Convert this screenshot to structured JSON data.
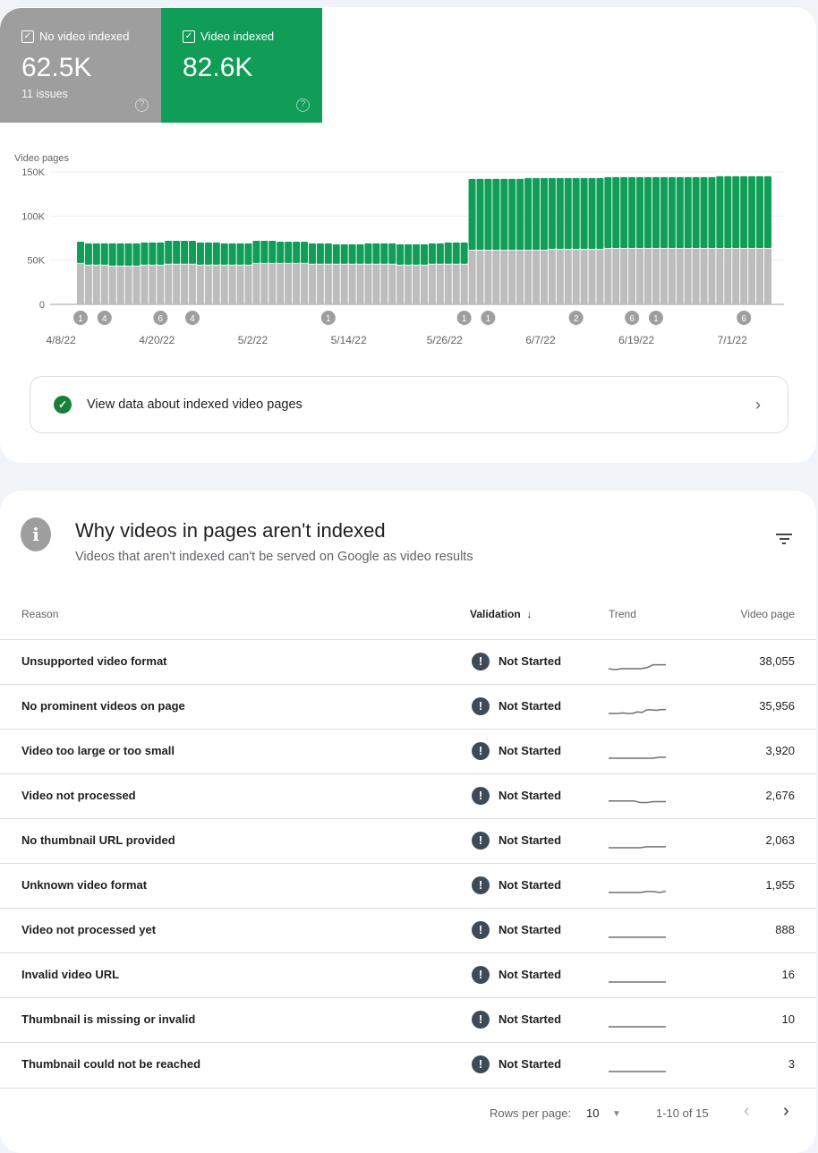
{
  "summary": {
    "no_video": {
      "label": "No video indexed",
      "value": "62.5K",
      "sub": "11 issues",
      "color": "#9e9e9e"
    },
    "video": {
      "label": "Video indexed",
      "value": "82.6K",
      "color": "#0f9d58"
    }
  },
  "chart_data": {
    "type": "bar",
    "stacked": true,
    "ylabel": "Video pages",
    "ylim": [
      0,
      150000
    ],
    "yticks": [
      "0",
      "50K",
      "100K",
      "150K"
    ],
    "ytick_values": [
      0,
      50000,
      100000,
      150000
    ],
    "grid": true,
    "xticks": [
      "4/8/22",
      "4/20/22",
      "5/2/22",
      "5/14/22",
      "5/26/22",
      "6/7/22",
      "6/19/22",
      "7/1/22"
    ],
    "dates": [
      "4/10",
      "4/11",
      "4/12",
      "4/13",
      "4/14",
      "4/15",
      "4/16",
      "4/17",
      "4/18",
      "4/19",
      "4/20",
      "4/21",
      "4/22",
      "4/23",
      "4/24",
      "4/25",
      "4/26",
      "4/27",
      "4/28",
      "4/29",
      "4/30",
      "5/1",
      "5/2",
      "5/3",
      "5/4",
      "5/5",
      "5/6",
      "5/7",
      "5/8",
      "5/9",
      "5/10",
      "5/11",
      "5/12",
      "5/13",
      "5/14",
      "5/15",
      "5/16",
      "5/17",
      "5/18",
      "5/19",
      "5/20",
      "5/21",
      "5/22",
      "5/23",
      "5/24",
      "5/25",
      "5/26",
      "5/27",
      "5/28",
      "5/29",
      "5/30",
      "5/31",
      "6/1",
      "6/2",
      "6/3",
      "6/4",
      "6/5",
      "6/6",
      "6/7",
      "6/8",
      "6/9",
      "6/10",
      "6/11",
      "6/12",
      "6/13",
      "6/14",
      "6/15",
      "6/16",
      "6/17",
      "6/18",
      "6/19",
      "6/20",
      "6/21",
      "6/22",
      "6/23",
      "6/24",
      "6/25",
      "6/26",
      "6/27",
      "6/28",
      "6/29",
      "6/30",
      "7/1",
      "7/2",
      "7/3",
      "7/4",
      "7/5"
    ],
    "series": [
      {
        "name": "No video indexed",
        "color": "#bdbdbd",
        "values_k": [
          46,
          44,
          44,
          44,
          43,
          43,
          43,
          43,
          44,
          44,
          44,
          45,
          45,
          45,
          45,
          44,
          44,
          44,
          44,
          44,
          44,
          44,
          46,
          46,
          46,
          46,
          46,
          46,
          46,
          45,
          45,
          45,
          45,
          45,
          45,
          45,
          45,
          45,
          45,
          45,
          44,
          44,
          44,
          44,
          45,
          45,
          45,
          45,
          45,
          61,
          61,
          61,
          61,
          61,
          61,
          61,
          61,
          61,
          61,
          62,
          62,
          62,
          62,
          62,
          62,
          62,
          63,
          63,
          63,
          63,
          63,
          63,
          63,
          63,
          63,
          63,
          63,
          63,
          63,
          63,
          63,
          63,
          63,
          63,
          63,
          63,
          63
        ]
      },
      {
        "name": "Video indexed",
        "color": "#0f9d58",
        "values_k": [
          25,
          25,
          25,
          25,
          26,
          26,
          26,
          26,
          26,
          26,
          26,
          27,
          27,
          27,
          27,
          26,
          26,
          26,
          25,
          25,
          25,
          25,
          26,
          26,
          26,
          25,
          25,
          25,
          25,
          24,
          24,
          24,
          23,
          23,
          23,
          23,
          24,
          24,
          24,
          24,
          24,
          24,
          24,
          24,
          24,
          24,
          25,
          25,
          25,
          81,
          81,
          81,
          81,
          81,
          81,
          81,
          82,
          82,
          82,
          81,
          81,
          81,
          81,
          81,
          81,
          81,
          81,
          81,
          81,
          81,
          81,
          81,
          81,
          81,
          81,
          81,
          81,
          81,
          81,
          81,
          82,
          82,
          82,
          82,
          82,
          82,
          82
        ]
      }
    ],
    "annotations": [
      {
        "date": "4/10",
        "count": "1"
      },
      {
        "date": "4/13",
        "count": "4"
      },
      {
        "date": "4/20",
        "count": "6"
      },
      {
        "date": "4/24",
        "count": "4"
      },
      {
        "date": "5/11",
        "count": "1"
      },
      {
        "date": "5/28",
        "count": "1"
      },
      {
        "date": "5/31",
        "count": "1"
      },
      {
        "date": "6/11",
        "count": "2"
      },
      {
        "date": "6/18",
        "count": "6"
      },
      {
        "date": "6/21",
        "count": "1"
      },
      {
        "date": "7/2",
        "count": "6"
      }
    ]
  },
  "view_link": "View data about indexed video pages",
  "issues": {
    "title": "Why videos in pages aren't indexed",
    "subtitle": "Videos that aren't indexed can't be served on Google as video results",
    "columns": {
      "reason": "Reason",
      "validation": "Validation",
      "trend": "Trend",
      "pages": "Video page"
    },
    "rows": [
      {
        "reason": "Unsupported video format",
        "validation": "Not Started",
        "pages": "38,055",
        "trend": [
          1,
          0.5,
          1,
          1,
          1,
          1,
          1.5,
          3,
          3,
          3
        ]
      },
      {
        "reason": "No prominent videos on page",
        "validation": "Not Started",
        "pages": "35,956",
        "trend": [
          1,
          1,
          1,
          1.3,
          1,
          1,
          1.8,
          1.5,
          2.8,
          2.8,
          2.6,
          3,
          3
        ]
      },
      {
        "reason": "Video too large or too small",
        "validation": "Not Started",
        "pages": "3,920",
        "trend": [
          1,
          1,
          1,
          1,
          1,
          1,
          1,
          1,
          1.5,
          1.5
        ]
      },
      {
        "reason": "Video not processed",
        "validation": "Not Started",
        "pages": "2,676",
        "trend": [
          2,
          2,
          2,
          2,
          2,
          1.2,
          1.2,
          1.7,
          1.7,
          1.7
        ]
      },
      {
        "reason": "No thumbnail URL provided",
        "validation": "Not Started",
        "pages": "2,063",
        "trend": [
          1,
          1,
          1,
          1,
          1,
          1,
          1.5,
          1.5,
          1.5,
          1.5
        ]
      },
      {
        "reason": "Unknown video format",
        "validation": "Not Started",
        "pages": "1,955",
        "trend": [
          1,
          1,
          1,
          1,
          1,
          1,
          1.5,
          1.5,
          1,
          1.6
        ]
      },
      {
        "reason": "Video not processed yet",
        "validation": "Not Started",
        "pages": "888",
        "trend": [
          1,
          1,
          1,
          1,
          1,
          1,
          1,
          1,
          1,
          1
        ]
      },
      {
        "reason": "Invalid video URL",
        "validation": "Not Started",
        "pages": "16",
        "trend": [
          1,
          1,
          1,
          1,
          1,
          1,
          1,
          1,
          1,
          1
        ]
      },
      {
        "reason": "Thumbnail is missing or invalid",
        "validation": "Not Started",
        "pages": "10",
        "trend": [
          1,
          1,
          1,
          1,
          1,
          1,
          1,
          1,
          1,
          1
        ]
      },
      {
        "reason": "Thumbnail could not be reached",
        "validation": "Not Started",
        "pages": "3",
        "trend": [
          1,
          1,
          1,
          1,
          1,
          1,
          1,
          1,
          1,
          1
        ]
      }
    ],
    "pagination": {
      "rows_label": "Rows per page:",
      "rows_value": "10",
      "range": "1-10 of 15"
    }
  }
}
